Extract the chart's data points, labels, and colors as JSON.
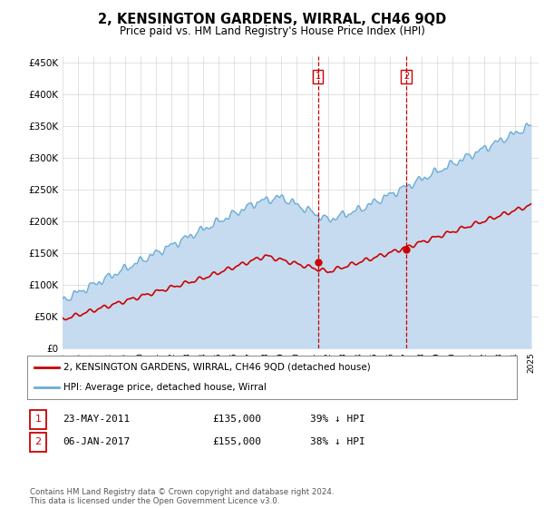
{
  "title": "2, KENSINGTON GARDENS, WIRRAL, CH46 9QD",
  "subtitle": "Price paid vs. HM Land Registry's House Price Index (HPI)",
  "ylabel_vals": [
    0,
    50000,
    100000,
    150000,
    200000,
    250000,
    300000,
    350000,
    400000,
    450000
  ],
  "ylabel_labels": [
    "£0",
    "£50K",
    "£100K",
    "£150K",
    "£200K",
    "£250K",
    "£300K",
    "£350K",
    "£400K",
    "£450K"
  ],
  "ylim": [
    0,
    460000
  ],
  "xlim": [
    1995,
    2025.5
  ],
  "hpi_color": "#6baed6",
  "hpi_fill_color": "#c6dbef",
  "price_color": "#cc0000",
  "marker1_year": 2011.38,
  "marker1_price": 135000,
  "marker2_year": 2017.02,
  "marker2_price": 155000,
  "legend_line1": "2, KENSINGTON GARDENS, WIRRAL, CH46 9QD (detached house)",
  "legend_line2": "HPI: Average price, detached house, Wirral",
  "table_row1": [
    "1",
    "23-MAY-2011",
    "£135,000",
    "39% ↓ HPI"
  ],
  "table_row2": [
    "2",
    "06-JAN-2017",
    "£155,000",
    "38% ↓ HPI"
  ],
  "footer": "Contains HM Land Registry data © Crown copyright and database right 2024.\nThis data is licensed under the Open Government Licence v3.0.",
  "background_color": "#ffffff",
  "grid_color": "#cccccc"
}
